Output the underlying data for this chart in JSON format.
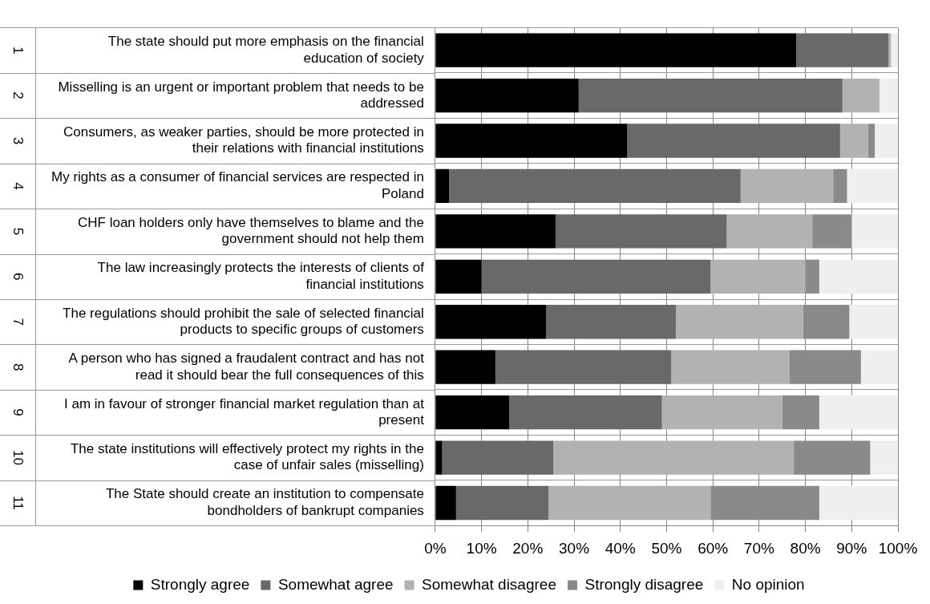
{
  "chart_data": {
    "type": "bar",
    "orientation": "horizontal",
    "stacked": true,
    "categories": [
      "The state should put more emphasis on the financial education of society",
      "Misselling is an urgent or important problem that needs to be addressed",
      "Consumers, as weaker parties, should be more protected in their relations with financial institutions",
      "My rights as a consumer of financial services are respected in Poland",
      "CHF loan holders only have themselves to blame and the government should not help them",
      "The law increasingly protects the interests of clients of financial institutions",
      "The regulations should prohibit the sale of selected financial products to specific groups of customers",
      "A person who has signed a fraudalent contract and has not read it should bear the full consequences of this",
      "I am in favour of stronger financial market regulation than at present",
      "The state institutions will effectively protect my rights in the case of unfair sales (misselling)",
      "The State should create an institution to compensate bondholders of bankrupt companies"
    ],
    "series": [
      {
        "name": "Strongly agree",
        "color": "#000000",
        "values": [
          78,
          31,
          41.5,
          3,
          26,
          10,
          24,
          13,
          16,
          1.5,
          4.5
        ]
      },
      {
        "name": "Somewhat agree",
        "color": "#696969",
        "values": [
          20,
          57,
          46,
          63,
          37,
          49.5,
          28,
          38,
          33,
          24,
          20
        ]
      },
      {
        "name": "Somewhat disagree",
        "color": "#b2b2b2",
        "values": [
          0.5,
          8,
          6,
          20,
          18.5,
          20.5,
          27.5,
          25.5,
          26,
          52,
          35
        ]
      },
      {
        "name": "Strongly disagree",
        "color": "#8a8a8a",
        "values": [
          0,
          0,
          1.5,
          3,
          8.5,
          3,
          10,
          15.5,
          8,
          16.5,
          23.5
        ]
      },
      {
        "name": "No opinion",
        "color": "#efefef",
        "values": [
          1.5,
          4,
          5,
          11,
          10,
          17,
          10.5,
          8,
          17,
          6,
          17
        ]
      }
    ],
    "xlim": [
      0,
      100
    ],
    "xticks": [
      {
        "value": 0,
        "label": "0%"
      },
      {
        "value": 10,
        "label": "10%"
      },
      {
        "value": 20,
        "label": "20%"
      },
      {
        "value": 30,
        "label": "30%"
      },
      {
        "value": 40,
        "label": "40%"
      },
      {
        "value": 50,
        "label": "50%"
      },
      {
        "value": 60,
        "label": "60%"
      },
      {
        "value": 70,
        "label": "70%"
      },
      {
        "value": 80,
        "label": "80%"
      },
      {
        "value": 90,
        "label": "90%"
      },
      {
        "value": 100,
        "label": "100%"
      }
    ],
    "annotations": [
      "1",
      "2",
      "3",
      "4",
      "5",
      "6",
      "7",
      "8",
      "9",
      "10",
      "11"
    ],
    "grid": true,
    "legend": "bottom"
  }
}
